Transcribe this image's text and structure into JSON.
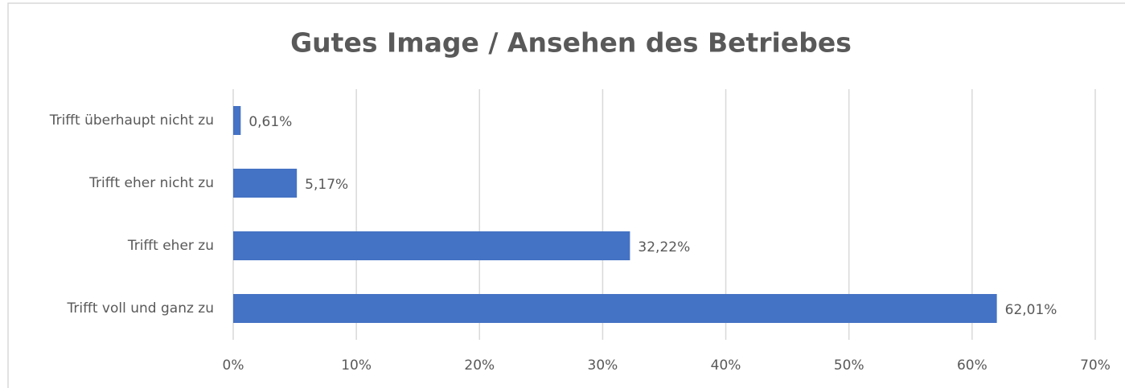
{
  "chart_data": {
    "type": "barh",
    "title": "Gutes Image / Ansehen des Betriebes",
    "categories": [
      "Trifft überhaupt nicht zu",
      "Trifft eher nicht zu",
      "Trifft eher zu",
      "Trifft voll und ganz zu"
    ],
    "values": [
      0.61,
      5.17,
      32.22,
      62.01
    ],
    "value_labels": [
      "0,61%",
      "5,17%",
      "32,22%",
      "62,01%"
    ],
    "color": "#4472c4",
    "xlim": [
      0,
      70
    ],
    "xticks": [
      {
        "value": 0,
        "label": "0%"
      },
      {
        "value": 10,
        "label": "10%"
      },
      {
        "value": 20,
        "label": "20%"
      },
      {
        "value": 30,
        "label": "30%"
      },
      {
        "value": 40,
        "label": "40%"
      },
      {
        "value": 50,
        "label": "50%"
      },
      {
        "value": 60,
        "label": "60%"
      },
      {
        "value": 70,
        "label": "70%"
      }
    ],
    "grid": true
  }
}
